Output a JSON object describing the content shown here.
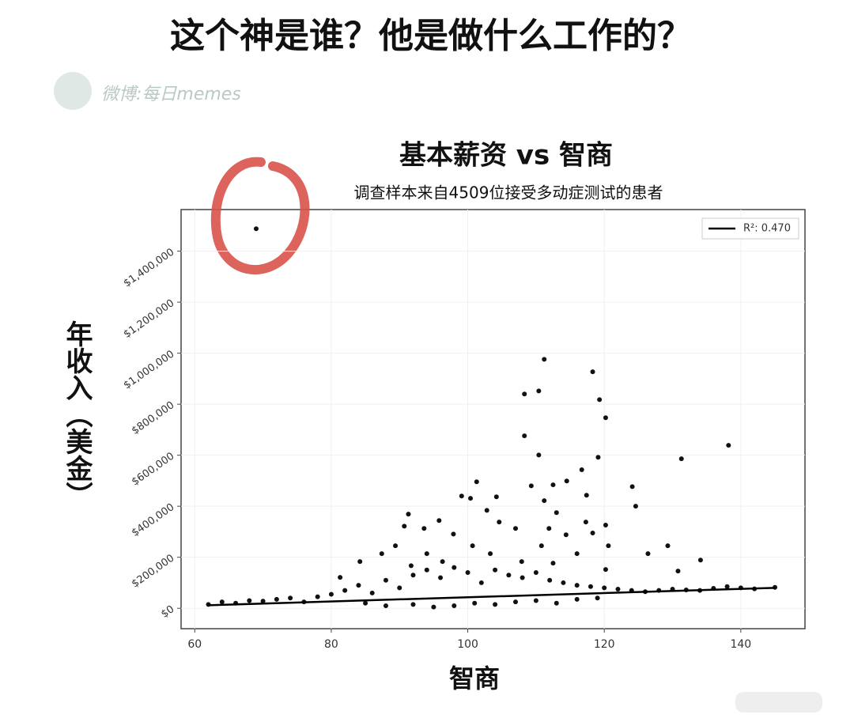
{
  "header": {
    "title": "这个神是谁？他是做什么工作的？",
    "watermark": "微博:每日memes"
  },
  "chart_data": {
    "type": "scatter",
    "title": "基本薪资 vs 智商",
    "subtitle": "调查样本来自4509位接受多动症测试的患者",
    "x_label": "智商",
    "y_label": "年收入（美金）",
    "color": "#111111",
    "grid": true,
    "legend": "upper right",
    "xlim": [
      58,
      149.4
    ],
    "ylim": [
      -80000,
      1563000
    ],
    "xticks": [
      60,
      80,
      100,
      120,
      140
    ],
    "yticks": [
      {
        "value": 0,
        "label": "$0"
      },
      {
        "value": 200000,
        "label": "$200,000"
      },
      {
        "value": 400000,
        "label": "$400,000"
      },
      {
        "value": 600000,
        "label": "$600,000"
      },
      {
        "value": 800000,
        "label": "$800,000"
      },
      {
        "value": 1000000,
        "label": "$1,000,000"
      },
      {
        "value": 1200000,
        "label": "$1,200,000"
      },
      {
        "value": 1400000,
        "label": "$1,400,000"
      }
    ],
    "x": [
      69,
      111.2,
      118.3,
      108.3,
      110.4,
      119.3,
      120.2,
      108.3,
      110.4,
      119.1,
      131.3,
      138.2,
      116.7,
      101.3,
      114.5,
      124.1,
      109.3,
      112.5,
      99.1,
      100.4,
      104.2,
      117.4,
      124.6,
      111.2,
      102.8,
      91.3,
      95.8,
      104.6,
      113,
      117.3,
      120.2,
      90.7,
      93.6,
      97.9,
      107,
      111.9,
      114.4,
      118.3,
      129.3,
      126.4,
      134.1,
      130.8,
      120.2,
      87.4,
      84.2,
      100.7,
      89.4,
      103.3,
      110.8,
      116,
      120.6,
      94,
      81.3,
      91.7,
      96.3,
      107.9,
      112.5,
      62,
      64,
      66,
      68,
      70,
      72,
      74,
      76,
      78,
      80,
      82,
      84,
      86,
      88,
      90,
      92,
      94,
      96,
      98,
      100,
      102,
      104,
      106,
      108,
      110,
      112,
      114,
      116,
      118,
      120,
      122,
      124,
      126,
      128,
      130,
      132,
      134,
      136,
      138,
      140,
      142,
      145,
      85,
      88,
      92,
      95,
      98,
      101,
      104,
      107,
      110,
      113,
      116,
      119
    ],
    "values": [
      1488000,
      976000,
      927000,
      840000,
      852000,
      818000,
      747000,
      676000,
      601000,
      592000,
      586000,
      639000,
      543000,
      496000,
      499000,
      477000,
      480000,
      484000,
      440000,
      431000,
      437000,
      443000,
      400000,
      422000,
      384000,
      369000,
      344000,
      338000,
      375000,
      338000,
      326000,
      322000,
      313000,
      291000,
      313000,
      313000,
      288000,
      295000,
      245000,
      214000,
      189000,
      146000,
      152000,
      214000,
      183000,
      245000,
      245000,
      214000,
      245000,
      214000,
      245000,
      214000,
      121000,
      167000,
      183000,
      183000,
      177000,
      15000,
      25000,
      20000,
      30000,
      28000,
      35000,
      40000,
      25000,
      45000,
      55000,
      70000,
      90000,
      60000,
      110000,
      80000,
      130000,
      150000,
      120000,
      160000,
      140000,
      100000,
      150000,
      130000,
      120000,
      140000,
      110000,
      100000,
      90000,
      85000,
      80000,
      75000,
      70000,
      65000,
      70000,
      75000,
      72000,
      70000,
      78000,
      85000,
      80000,
      76000,
      82000,
      20000,
      10000,
      15000,
      5000,
      10000,
      20000,
      15000,
      25000,
      30000,
      20000,
      35000,
      40000
    ],
    "regression": {
      "name": "R²: 0.470",
      "color": "#000000",
      "x": [
        62,
        145
      ],
      "values": [
        12000,
        80000
      ]
    }
  }
}
